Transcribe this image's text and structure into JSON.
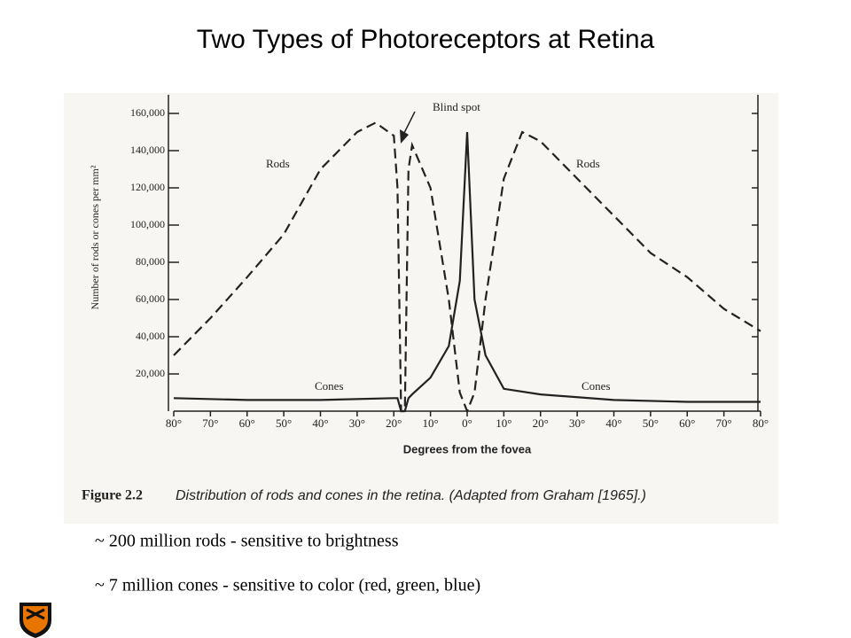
{
  "slide": {
    "title": "Two Types of Photoreceptors at Retina",
    "bullets": [
      "~ 200 million rods - sensitive to brightness",
      "~ 7 million cones - sensitive to color (red, green, blue)"
    ]
  },
  "chart_data": {
    "type": "line",
    "xlabel": "Degrees from the fovea",
    "ylabel": "Number of rods or cones per mm²",
    "figure_label": "Figure 2.2",
    "caption": "Distribution of rods and cones in the retina. (Adapted from Graham [1965].)",
    "annotations": [
      "Blind spot",
      "Rods",
      "Rods",
      "Cones",
      "Cones"
    ],
    "xlim": [
      -80,
      80
    ],
    "xticks": [
      {
        "value": -80,
        "label": "80°"
      },
      {
        "value": -70,
        "label": "70°"
      },
      {
        "value": -60,
        "label": "60°"
      },
      {
        "value": -50,
        "label": "50°"
      },
      {
        "value": -40,
        "label": "40°"
      },
      {
        "value": -30,
        "label": "30°"
      },
      {
        "value": -20,
        "label": "20°"
      },
      {
        "value": -10,
        "label": "10°"
      },
      {
        "value": 0,
        "label": "0°"
      },
      {
        "value": 10,
        "label": "10°"
      },
      {
        "value": 20,
        "label": "20°"
      },
      {
        "value": 30,
        "label": "30°"
      },
      {
        "value": 40,
        "label": "40°"
      },
      {
        "value": 50,
        "label": "50°"
      },
      {
        "value": 60,
        "label": "60°"
      },
      {
        "value": 70,
        "label": "70°"
      },
      {
        "value": 80,
        "label": "80°"
      }
    ],
    "ylim": [
      0,
      170000
    ],
    "yticks": [
      {
        "value": 20000,
        "label": "20,000"
      },
      {
        "value": 40000,
        "label": "40,000"
      },
      {
        "value": 60000,
        "label": "60,000"
      },
      {
        "value": 80000,
        "label": "80,000"
      },
      {
        "value": 100000,
        "label": "100,000"
      },
      {
        "value": 120000,
        "label": "120,000"
      },
      {
        "value": 140000,
        "label": "140,000"
      },
      {
        "value": 160000,
        "label": "160,000"
      }
    ],
    "grid": false,
    "series": [
      {
        "name": "Rods",
        "color": "#222222",
        "dashed": true,
        "x": [
          -80,
          -70,
          -60,
          -50,
          -40,
          -35,
          -30,
          -25,
          -20,
          -19,
          -18,
          -17,
          -16,
          -15,
          -10,
          -5,
          -2,
          0,
          2,
          5,
          10,
          15,
          20,
          30,
          40,
          50,
          60,
          70,
          80
        ],
        "values": [
          30000,
          50000,
          72000,
          95000,
          130000,
          140000,
          150000,
          155000,
          148000,
          120000,
          0,
          0,
          130000,
          143000,
          120000,
          60000,
          10000,
          0,
          10000,
          60000,
          125000,
          150000,
          145000,
          125000,
          105000,
          85000,
          72000,
          55000,
          43000
        ]
      },
      {
        "name": "Cones",
        "color": "#222222",
        "dashed": false,
        "x": [
          -80,
          -60,
          -40,
          -20,
          -19,
          -18,
          -17,
          -16,
          -15,
          -10,
          -5,
          -2,
          0,
          2,
          5,
          10,
          20,
          40,
          60,
          80
        ],
        "values": [
          7000,
          6000,
          6000,
          7000,
          7000,
          0,
          0,
          7000,
          9000,
          18000,
          35000,
          70000,
          150000,
          60000,
          30000,
          12000,
          9000,
          6000,
          5000,
          5000
        ]
      }
    ]
  }
}
